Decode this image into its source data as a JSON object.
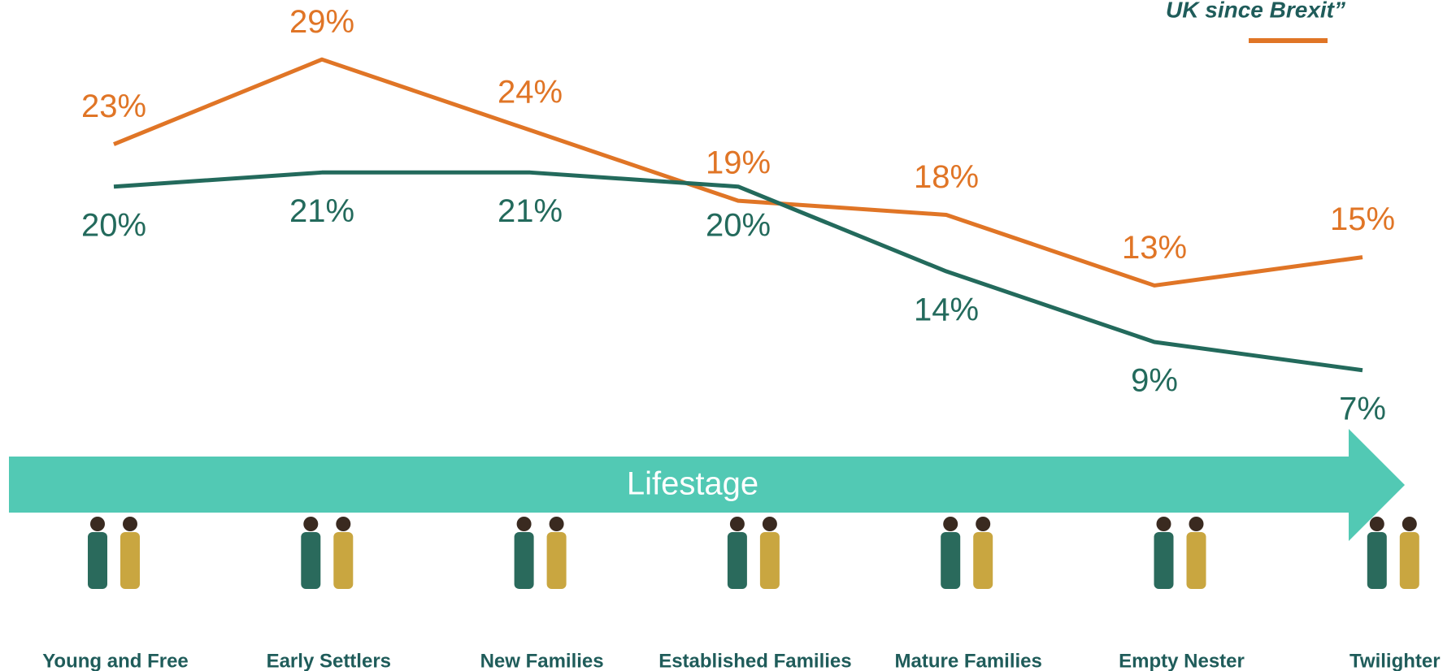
{
  "chart_data": {
    "type": "line",
    "categories": [
      "Young and Free",
      "Early Settlers",
      "New Families",
      "Established Families",
      "Mature Families",
      "Empty Nester",
      "Twilighter"
    ],
    "axis_label": "Lifestage",
    "series": [
      {
        "name": "UK since Brexit”",
        "color": "#e07526",
        "values": [
          23,
          29,
          24,
          19,
          18,
          13,
          15
        ],
        "value_labels": [
          "23%",
          "29%",
          "24%",
          "19%",
          "18%",
          "13%",
          "15%"
        ]
      },
      {
        "color": "#236a5c",
        "values": [
          20,
          21,
          21,
          20,
          14,
          9,
          7
        ],
        "value_labels": [
          "20%",
          "21%",
          "21%",
          "20%",
          "14%",
          "9%",
          "7%"
        ]
      }
    ]
  }
}
